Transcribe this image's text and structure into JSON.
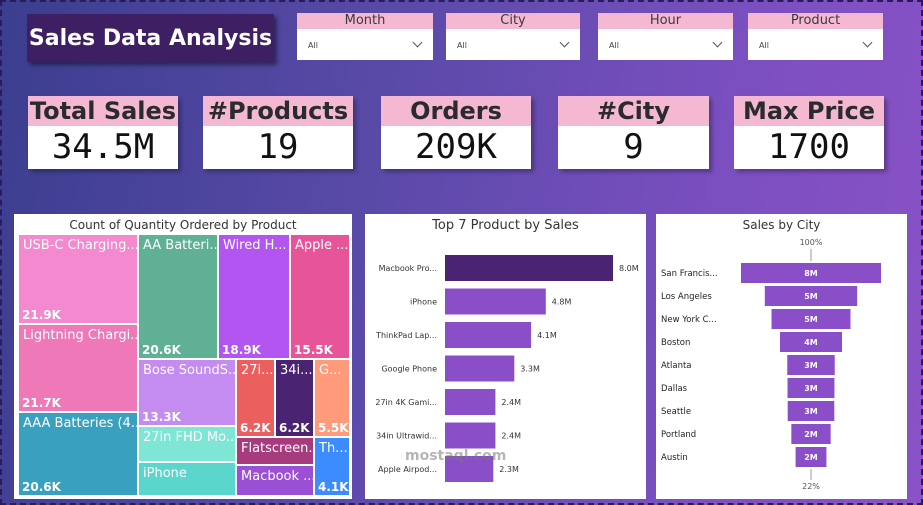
{
  "title": "Sales Data Analysis",
  "slicers": [
    {
      "label": "Month",
      "value": "All"
    },
    {
      "label": "City",
      "value": "All"
    },
    {
      "label": "Hour",
      "value": "All"
    },
    {
      "label": "Product",
      "value": "All"
    }
  ],
  "kpis": [
    {
      "label": "Total Sales",
      "value": "34.5M"
    },
    {
      "label": "#Products",
      "value": "19"
    },
    {
      "label": "Orders",
      "value": "209K"
    },
    {
      "label": "#City",
      "value": "9"
    },
    {
      "label": "Max Price",
      "value": "1700"
    }
  ],
  "watermark": "mostaql.com",
  "chart_data": [
    {
      "type": "treemap",
      "title": "Count of Quantity Ordered by Product",
      "items": [
        {
          "name": "USB-C Charging...",
          "value_label": "21.9K",
          "value": 21900,
          "color": "#f589d0"
        },
        {
          "name": "Lightning Chargi...",
          "value_label": "21.7K",
          "value": 21700,
          "color": "#ee78b8"
        },
        {
          "name": "AAA Batteries (4...",
          "value_label": "20.6K",
          "value": 20600,
          "color": "#3aa0c0"
        },
        {
          "name": "AA Batteri...",
          "value_label": "20.6K",
          "value": 20600,
          "color": "#5fb095"
        },
        {
          "name": "Wired H...",
          "value_label": "18.9K",
          "value": 18900,
          "color": "#b355f0"
        },
        {
          "name": "Apple ...",
          "value_label": "15.5K",
          "value": 15500,
          "color": "#e8549a"
        },
        {
          "name": "Bose SoundS...",
          "value_label": "13.3K",
          "value": 13300,
          "color": "#c48bf0"
        },
        {
          "name": "27i...",
          "value_label": "6.2K",
          "value": 6200,
          "color": "#ec5f5f"
        },
        {
          "name": "34i...",
          "value_label": "6.2K",
          "value": 6200,
          "color": "#4a2472"
        },
        {
          "name": "G...",
          "value_label": "5.5K",
          "value": 5500,
          "color": "#ff9a7a"
        },
        {
          "name": "27in FHD Mo...",
          "value_label": "",
          "value": null,
          "color": "#7fe5d5"
        },
        {
          "name": "Flatscreen...",
          "value_label": "",
          "value": null,
          "color": "#a83a7e"
        },
        {
          "name": "Th...",
          "value_label": "4.1K",
          "value": 4100,
          "color": "#3c8bff"
        },
        {
          "name": "iPhone",
          "value_label": "",
          "value": null,
          "color": "#5bd6cc"
        },
        {
          "name": "Macbook ...",
          "value_label": "",
          "value": null,
          "color": "#9a4fd4"
        }
      ]
    },
    {
      "type": "bar",
      "orientation": "horizontal",
      "title": "Top 7 Product by Sales",
      "categories": [
        "Macbook Pro...",
        "iPhone",
        "ThinkPad Lap...",
        "Google Phone",
        "27in 4K Gami...",
        "34in Ultrawid...",
        "Apple Airpod..."
      ],
      "values": [
        8.0,
        4.8,
        4.1,
        3.3,
        2.4,
        2.4,
        2.3
      ],
      "value_labels": [
        "8.0M",
        "4.8M",
        "4.1M",
        "3.3M",
        "2.4M",
        "2.4M",
        "2.3M"
      ],
      "units": "M",
      "xlim": [
        0,
        8.0
      ],
      "colors": {
        "top": "#4a2472",
        "rest": "#8a4fc8"
      }
    },
    {
      "type": "funnel",
      "title": "Sales by City",
      "categories": [
        "San Francis...",
        "Los Angeles",
        "New York C...",
        "Boston",
        "Atlanta",
        "Dallas",
        "Seattle",
        "Portland",
        "Austin"
      ],
      "values": [
        8.26,
        5.45,
        4.66,
        3.66,
        2.8,
        2.77,
        2.75,
        2.32,
        1.82
      ],
      "value_labels": [
        "8M",
        "5M",
        "5M",
        "4M",
        "3M",
        "3M",
        "3M",
        "2M",
        "2M"
      ],
      "top_label": "100%",
      "bottom_label": "22%",
      "color": "#8a4fc8"
    }
  ]
}
